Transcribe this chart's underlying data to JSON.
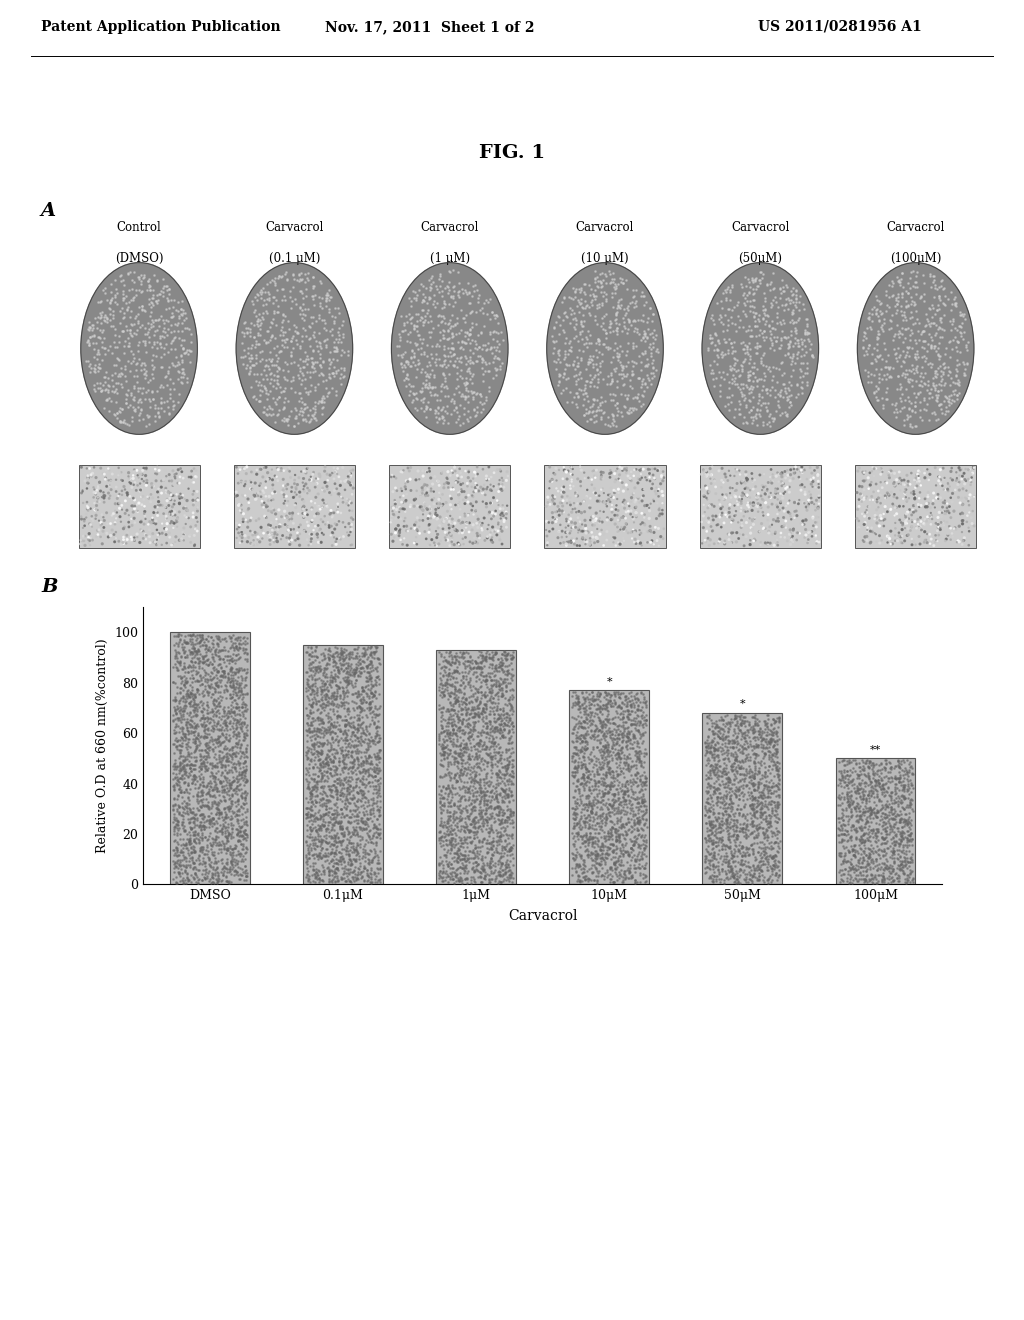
{
  "header_left": "Patent Application Publication",
  "header_mid": "Nov. 17, 2011  Sheet 1 of 2",
  "header_right": "US 2011/0281956 A1",
  "fig_title": "FIG. 1",
  "panel_a_label": "A",
  "panel_b_label": "B",
  "col_labels_line1": [
    "Control",
    "Carvacrol",
    "Carvacrol",
    "Carvacrol",
    "Carvacrol",
    "Carvacrol"
  ],
  "col_labels_line2": [
    "(DMSO)",
    "(0.1 μM)",
    "(1 μM)",
    "(10 μM)",
    "(50μM)",
    "(100μM)"
  ],
  "bar_categories": [
    "DMSO",
    "0.1μM",
    "1μM",
    "10μM",
    "50μM",
    "100μM"
  ],
  "bar_values": [
    100,
    95,
    93,
    77,
    68,
    50
  ],
  "bar_color": "#aaaaaa",
  "ylabel": "Relative O.D at 660 nm(%control)",
  "xlabel": "Carvacrol",
  "ylim": [
    0,
    110
  ],
  "yticks": [
    0,
    20,
    40,
    60,
    80,
    100
  ],
  "background_color": "#ffffff",
  "header_fontsize": 10,
  "fig_title_fontsize": 14,
  "label_fontsize": 9,
  "panel_label_fontsize": 14
}
